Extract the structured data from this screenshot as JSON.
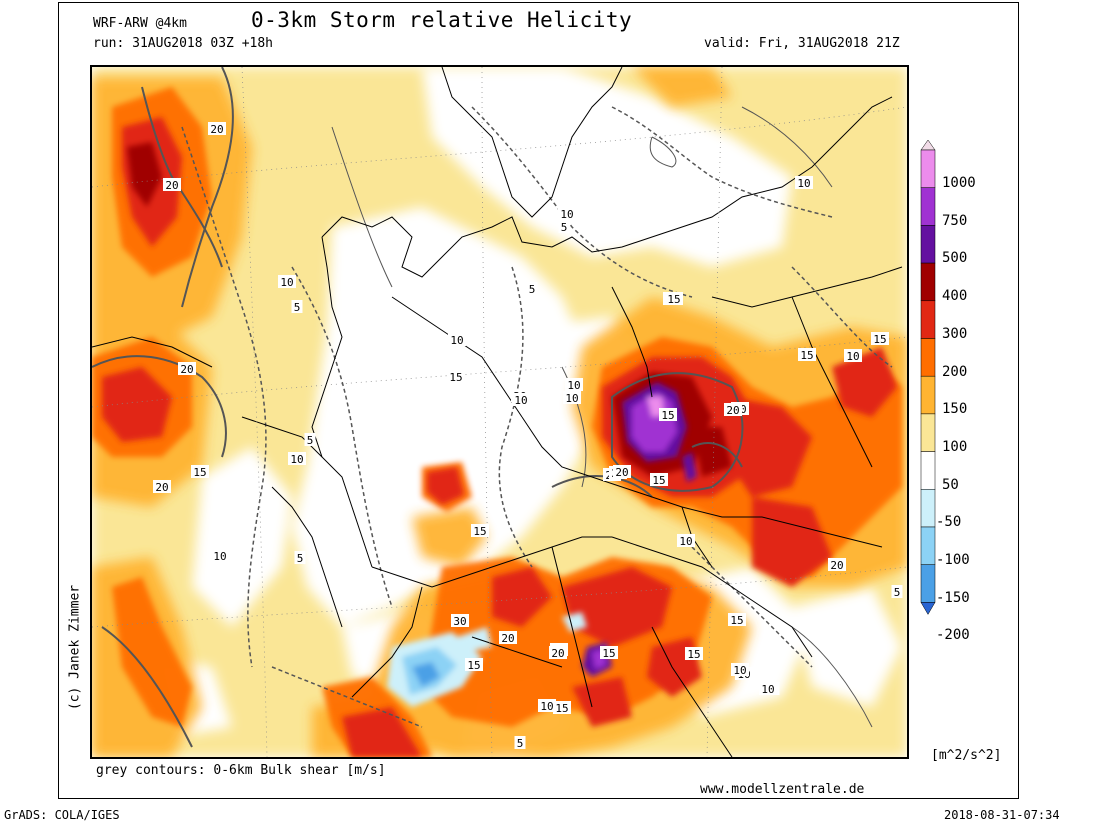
{
  "header": {
    "model": "WRF-ARW @4km",
    "title": "0-3km Storm relative Helicity",
    "run": "run: 31AUG2018 03Z +18h",
    "valid": "valid: Fri, 31AUG2018 21Z"
  },
  "footer": {
    "caption": "grey contours: 0-6km Bulk shear [m/s]",
    "website": "www.modellzentrale.de",
    "software": "GrADS: COLA/IGES",
    "timestamp": "2018-08-31-07:34",
    "copyright": "(c) Janek Zimmer"
  },
  "colorbar": {
    "units": "[m^2/s^2]",
    "labels": [
      "1000",
      "750",
      "500",
      "400",
      "300",
      "200",
      "150",
      "100",
      "50",
      "-50",
      "-100",
      "-150",
      "-200"
    ],
    "colors": [
      "#f2dce8",
      "#ec8cec",
      "#a032d2",
      "#6410a0",
      "#a00000",
      "#e12814",
      "#ff6e00",
      "#ffb432",
      "#fae696",
      "#ffffff",
      "#cdf0fa",
      "#8cd2f5",
      "#4ba0e6",
      "#2864d2"
    ]
  },
  "contour_labels": [
    "20",
    "20",
    "10",
    "5",
    "20",
    "15",
    "20",
    "10",
    "5",
    "10",
    "15",
    "20",
    "5",
    "10",
    "10",
    "10",
    "10",
    "15",
    "20",
    "20",
    "20",
    "15",
    "10",
    "15",
    "15",
    "15",
    "5",
    "10",
    "5",
    "10",
    "15",
    "20",
    "15",
    "20",
    "30",
    "20",
    "15",
    "15",
    "15",
    "20",
    "10",
    "20",
    "10",
    "15",
    "5",
    "10",
    "5",
    "5",
    "10",
    "15",
    "15",
    "10"
  ],
  "colors": {
    "shear_contour": "#555555",
    "border": "#000000"
  }
}
